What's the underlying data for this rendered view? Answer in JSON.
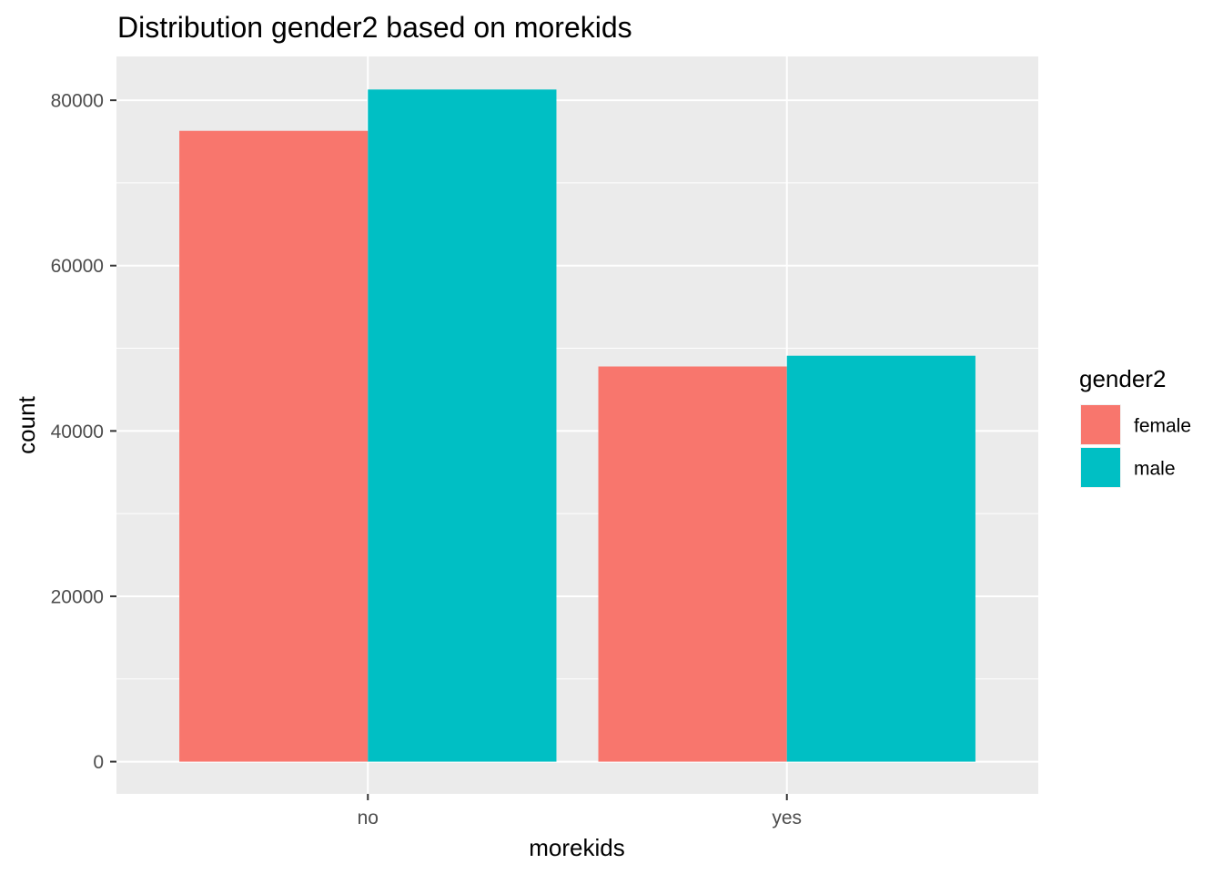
{
  "chart_data": {
    "type": "bar",
    "title": "Distribution gender2 based on morekids",
    "xlabel": "morekids",
    "ylabel": "count",
    "categories": [
      "no",
      "yes"
    ],
    "series": [
      {
        "name": "female",
        "color": "#F8766D",
        "values": [
          76300,
          47800
        ]
      },
      {
        "name": "male",
        "color": "#00BFC4",
        "values": [
          81300,
          49100
        ]
      }
    ],
    "yticks": [
      0,
      20000,
      40000,
      60000,
      80000
    ],
    "ytick_labels": [
      "0",
      "20000",
      "40000",
      "60000",
      "80000"
    ],
    "ylim": [
      -3900,
      85300
    ],
    "grid": true,
    "legend": {
      "title": "gender2",
      "placement": "right"
    },
    "colors": {
      "panel_background": "#EBEBEB",
      "grid_line": "#FFFFFF",
      "tick_label": "#4D4D4D",
      "tick_mark": "#333333"
    }
  }
}
